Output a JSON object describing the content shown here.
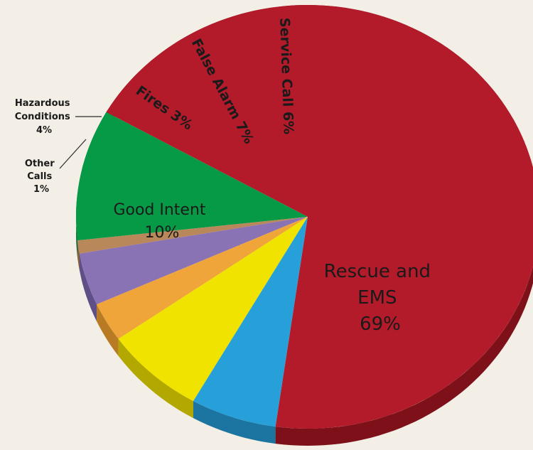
{
  "chart_data": {
    "type": "pie",
    "style": "3d-tilted",
    "legend": "none",
    "slices": [
      {
        "name": "Rescue and EMS",
        "value": 69,
        "color": "#b31b2b",
        "side_color": "#7e1019",
        "label_lines": [
          "Rescue and",
          "EMS",
          "69%"
        ]
      },
      {
        "name": "Good Intent",
        "value": 10,
        "color": "#079a46",
        "side_color": "#0b6a33",
        "label_lines": [
          "Good Intent",
          "10%"
        ]
      },
      {
        "name": "Other Calls",
        "value": 1,
        "color": "#b8875a",
        "side_color": "#86613f",
        "label_lines": [
          "Other",
          "Calls",
          "1%"
        ]
      },
      {
        "name": "Hazardous Conditions",
        "value": 4,
        "color": "#8a73b5",
        "side_color": "#5f4f86",
        "label_lines": [
          "Hazardous",
          "Conditions",
          "4%"
        ]
      },
      {
        "name": "Fires",
        "value": 3,
        "color": "#efa53a",
        "side_color": "#b87a22",
        "label_lines": [
          "Fires 3%"
        ]
      },
      {
        "name": "False Alarm",
        "value": 7,
        "color": "#f1e300",
        "side_color": "#b3a800",
        "label_lines": [
          "False Alarm 7%"
        ]
      },
      {
        "name": "Service Call",
        "value": 6,
        "color": "#279fd9",
        "side_color": "#1c74a0",
        "label_lines": [
          "Service Call 6%"
        ]
      }
    ]
  }
}
